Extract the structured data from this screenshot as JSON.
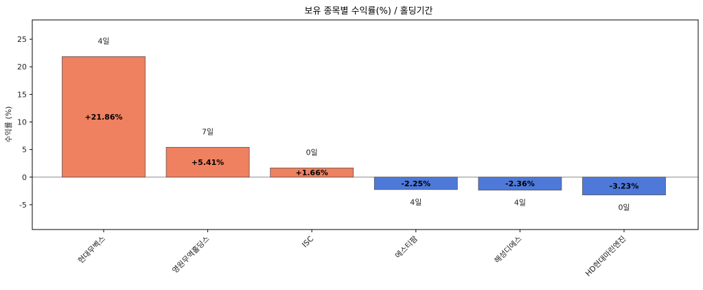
{
  "chart_data": {
    "type": "bar",
    "title": "보유 종목별 수익률(%) / 홀딩기간",
    "xlabel": "",
    "ylabel": "수익률 (%)",
    "ylim": [
      -9.5,
      28.5
    ],
    "yticks": [
      -5,
      0,
      5,
      10,
      15,
      20,
      25
    ],
    "categories": [
      "현대무벡스",
      "영원무역홀딩스",
      "ISC",
      "에스티팜",
      "해성디에스",
      "HD현대마린엔진"
    ],
    "values": [
      21.86,
      5.41,
      1.66,
      -2.25,
      -2.36,
      -3.23
    ],
    "value_labels": [
      "+21.86%",
      "+5.41%",
      "+1.66%",
      "-2.25%",
      "-2.36%",
      "-3.23%"
    ],
    "holding_labels": [
      "4일",
      "7일",
      "0일",
      "4일",
      "4일",
      "0일"
    ],
    "colors": {
      "positive": "#ef8060",
      "negative": "#4e79d9",
      "edge": "#555555",
      "zero_line": "#888888"
    },
    "grid": false,
    "legend": "none"
  }
}
